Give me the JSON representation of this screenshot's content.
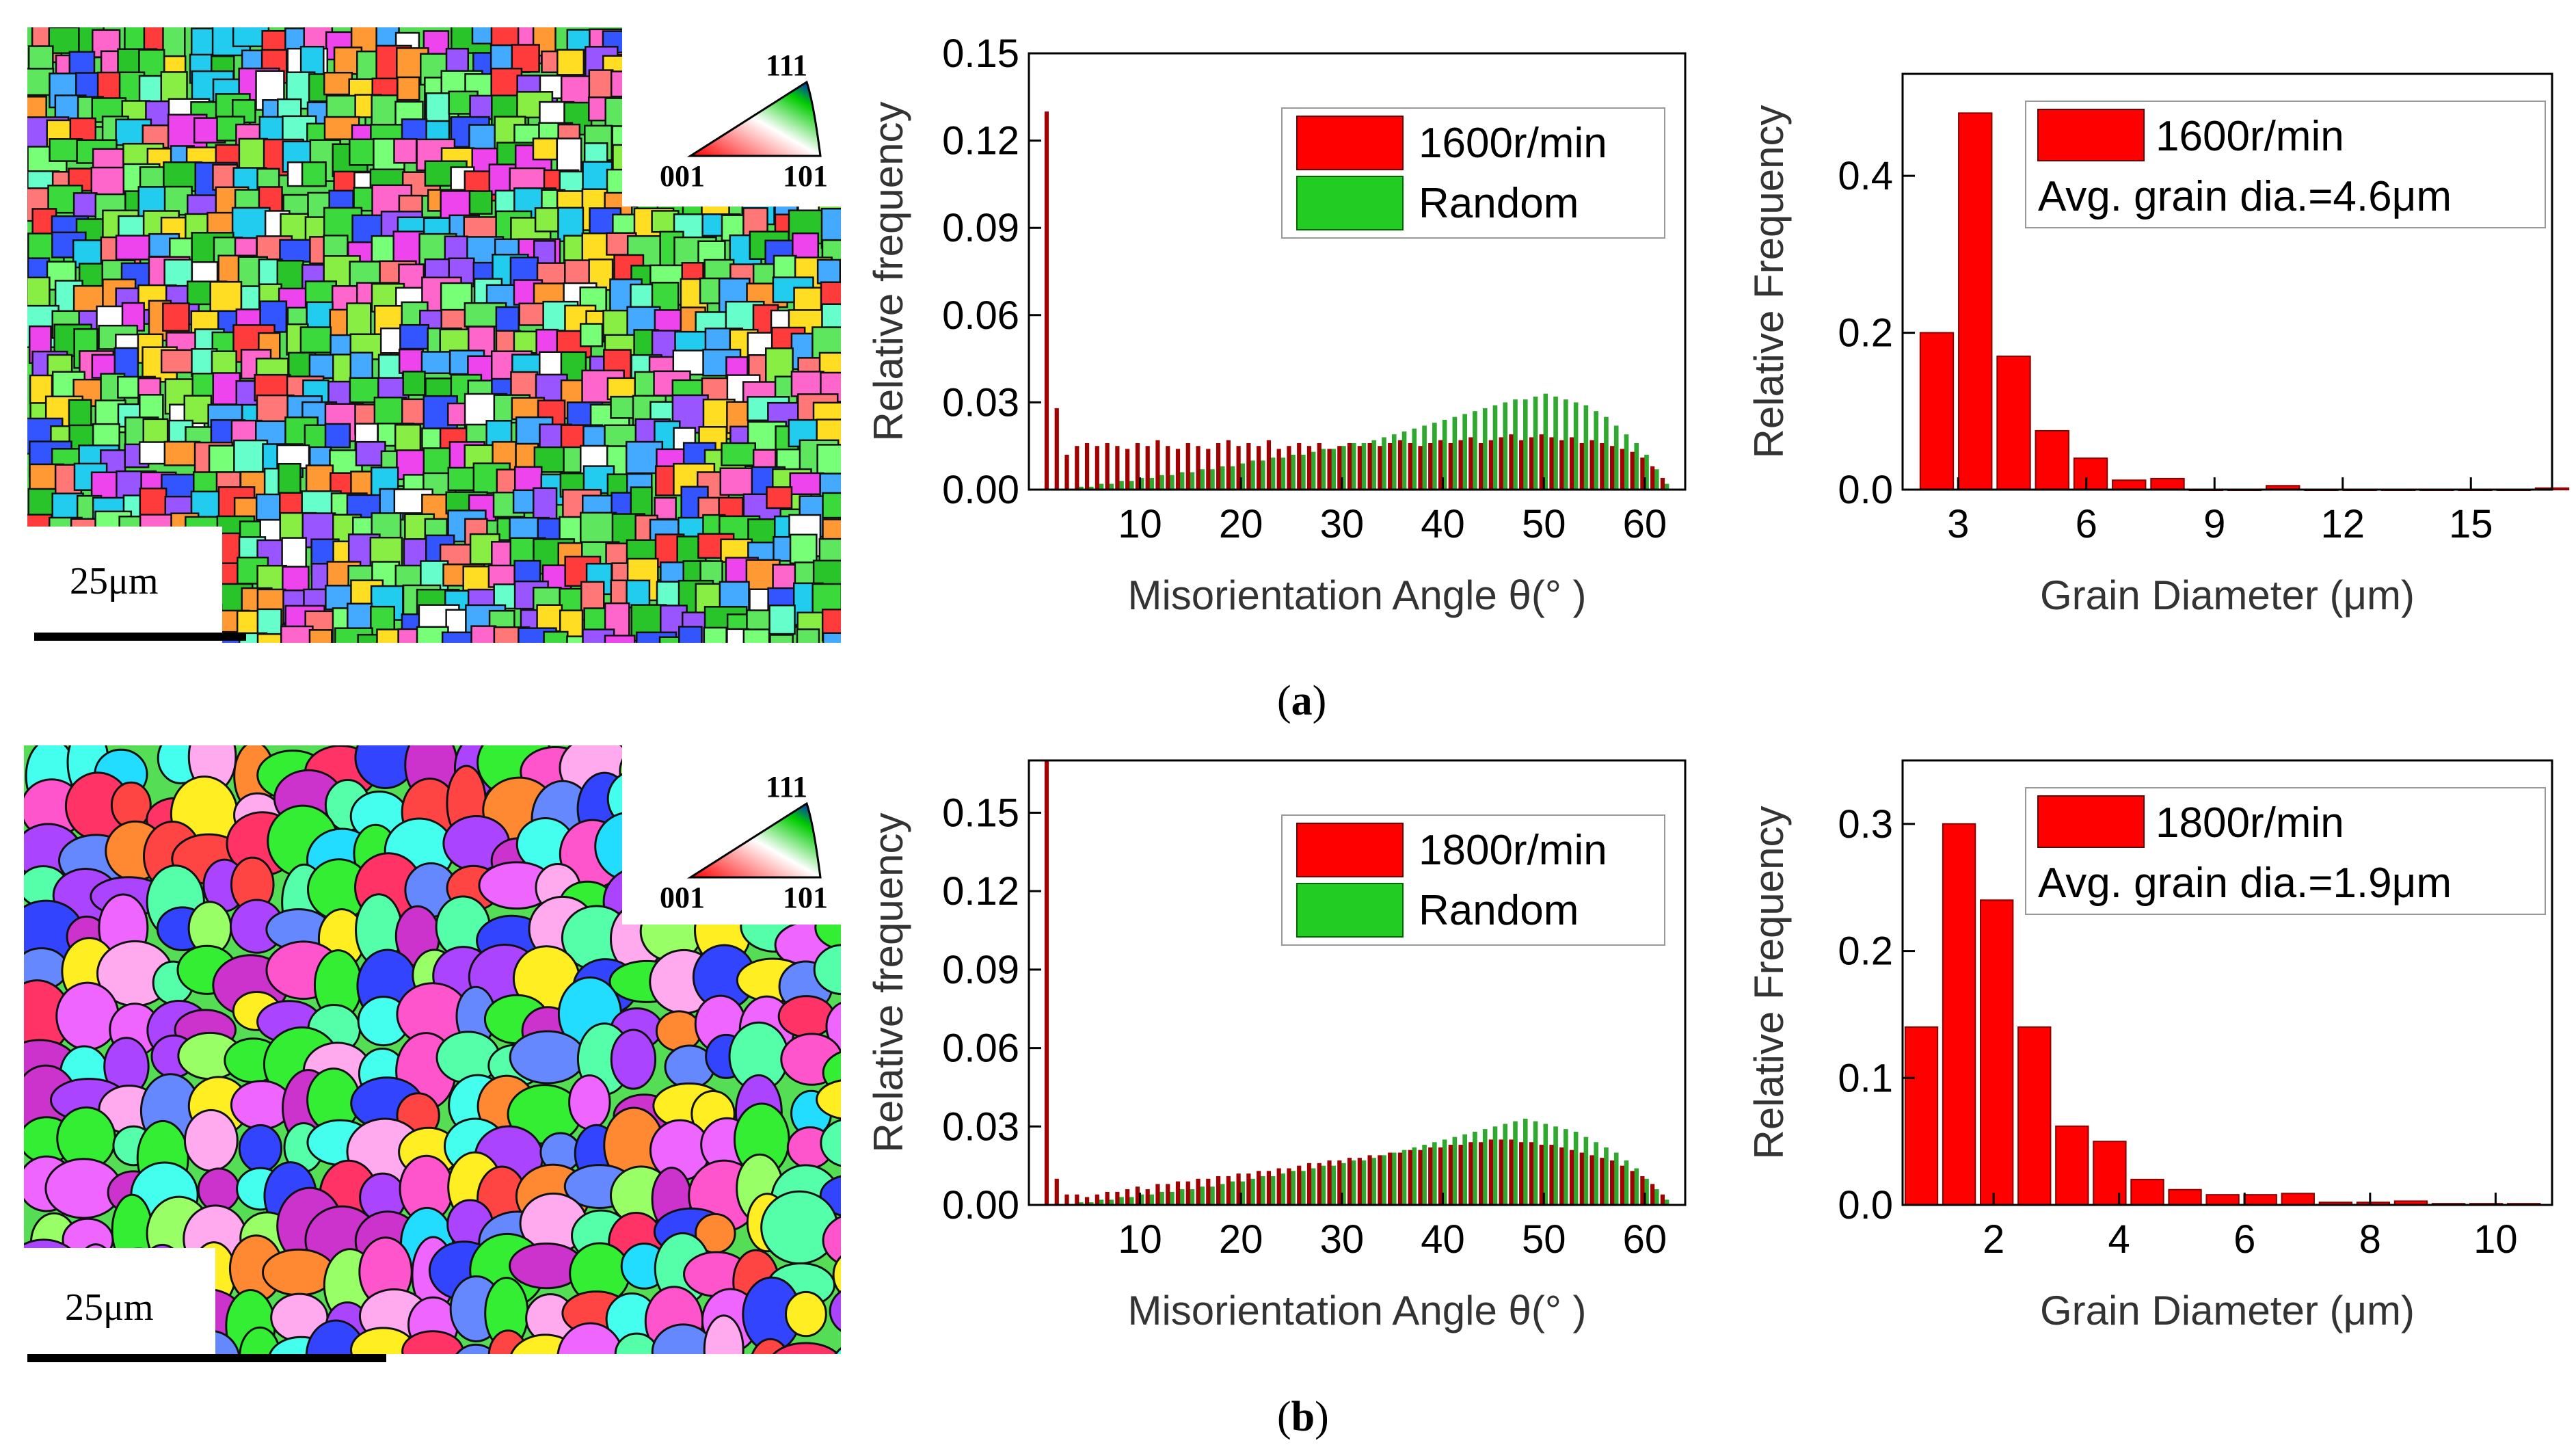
{
  "figure": {
    "caption_a": "a",
    "caption_b": "b"
  },
  "panels": [
    {
      "id": "a",
      "ebsd": {
        "scale_bar_label": "25μm",
        "ipf_key": {
          "corner_111": "111",
          "corner_001": "001",
          "corner_101": "101"
        }
      }
    },
    {
      "id": "b",
      "ebsd": {
        "scale_bar_label": "25μm",
        "ipf_key": {
          "corner_111": "111",
          "corner_001": "001",
          "corner_101": "101"
        }
      }
    }
  ],
  "colors": {
    "measured_fill": "#ff0000",
    "measured_bar_dark": "#a00000",
    "random_fill": "#22cc22",
    "random_bar": "#2fa82f"
  },
  "chart_data": [
    {
      "panel": "a",
      "type": "bar",
      "title": "",
      "xlabel": "Misorientation Angle θ(° )",
      "ylabel": "Relative frequency",
      "xlim": [
        -1,
        64
      ],
      "ylim": [
        0,
        0.15
      ],
      "xticks": [
        10,
        20,
        30,
        40,
        50,
        60
      ],
      "yticks": [
        "0.00",
        "0.03",
        "0.06",
        "0.09",
        "0.12",
        "0.15"
      ],
      "legend_position": "top-right",
      "series": [
        {
          "name": "1600r/min",
          "values": [
            0.13,
            0.028,
            0.012,
            0.015,
            0.016,
            0.015,
            0.016,
            0.015,
            0.014,
            0.016,
            0.015,
            0.017,
            0.015,
            0.014,
            0.016,
            0.015,
            0.014,
            0.016,
            0.017,
            0.015,
            0.016,
            0.015,
            0.017,
            0.014,
            0.015,
            0.016,
            0.015,
            0.016,
            0.014,
            0.015,
            0.016,
            0.015,
            0.016,
            0.015,
            0.016,
            0.017,
            0.016,
            0.015,
            0.016,
            0.017,
            0.016,
            0.017,
            0.018,
            0.016,
            0.017,
            0.018,
            0.019,
            0.017,
            0.018,
            0.019,
            0.018,
            0.017,
            0.018,
            0.016,
            0.017,
            0.016,
            0.015,
            0.014,
            0.013,
            0.011,
            0.008,
            0.004
          ]
        },
        {
          "name": "Random",
          "values": [
            0.0,
            0.0,
            0.0,
            0.001,
            0.001,
            0.002,
            0.002,
            0.003,
            0.003,
            0.004,
            0.004,
            0.005,
            0.005,
            0.006,
            0.006,
            0.007,
            0.007,
            0.008,
            0.008,
            0.009,
            0.01,
            0.01,
            0.011,
            0.011,
            0.012,
            0.012,
            0.013,
            0.014,
            0.014,
            0.015,
            0.016,
            0.016,
            0.017,
            0.018,
            0.019,
            0.02,
            0.021,
            0.022,
            0.023,
            0.024,
            0.025,
            0.026,
            0.027,
            0.028,
            0.029,
            0.03,
            0.031,
            0.031,
            0.032,
            0.033,
            0.032,
            0.031,
            0.03,
            0.029,
            0.027,
            0.025,
            0.022,
            0.019,
            0.016,
            0.012,
            0.007,
            0.002
          ]
        }
      ]
    },
    {
      "panel": "a",
      "type": "bar",
      "title": "",
      "xlabel": "Grain Diameter (μm)",
      "ylabel": "Relative Frequency",
      "xlim": [
        1.7,
        16.9
      ],
      "ylim": [
        0,
        0.53
      ],
      "xticks": [
        3,
        6,
        9,
        12,
        15
      ],
      "yticks": [
        "0.0",
        "0.2",
        "0.4"
      ],
      "legend_position": "top",
      "legend_label": "1600r/min",
      "annotation": "Avg. grain dia.=4.6μm",
      "bin_width": 0.9,
      "x": [
        2.5,
        3.4,
        4.3,
        5.2,
        6.1,
        7.0,
        7.9,
        8.8,
        9.7,
        10.6,
        11.5,
        12.4,
        13.3,
        14.2,
        15.1,
        16.0,
        16.9
      ],
      "values": [
        0.2,
        0.48,
        0.17,
        0.075,
        0.04,
        0.012,
        0.014,
        0.0,
        0.0,
        0.005,
        0.0,
        0.0,
        0.0,
        0.0,
        0.0,
        0.0,
        0.002
      ]
    },
    {
      "panel": "b",
      "type": "bar",
      "title": "",
      "xlabel": "Misorientation Angle θ(° )",
      "ylabel": "Relative frequency",
      "xlim": [
        -1,
        64
      ],
      "ylim": [
        0,
        0.17
      ],
      "xticks": [
        10,
        20,
        30,
        40,
        50,
        60
      ],
      "yticks": [
        "0.00",
        "0.03",
        "0.06",
        "0.09",
        "0.12",
        "0.15"
      ],
      "legend_position": "top-right",
      "series": [
        {
          "name": "1800r/min",
          "values": [
            0.17,
            0.01,
            0.004,
            0.004,
            0.003,
            0.004,
            0.005,
            0.005,
            0.006,
            0.007,
            0.006,
            0.008,
            0.008,
            0.009,
            0.009,
            0.01,
            0.01,
            0.011,
            0.011,
            0.012,
            0.012,
            0.013,
            0.013,
            0.014,
            0.014,
            0.015,
            0.016,
            0.016,
            0.017,
            0.017,
            0.018,
            0.018,
            0.019,
            0.019,
            0.02,
            0.02,
            0.021,
            0.021,
            0.022,
            0.022,
            0.023,
            0.023,
            0.024,
            0.024,
            0.025,
            0.025,
            0.025,
            0.024,
            0.024,
            0.023,
            0.023,
            0.022,
            0.021,
            0.02,
            0.019,
            0.018,
            0.017,
            0.015,
            0.013,
            0.011,
            0.008,
            0.004
          ]
        },
        {
          "name": "Random",
          "values": [
            0.0,
            0.0,
            0.0,
            0.001,
            0.001,
            0.002,
            0.002,
            0.003,
            0.003,
            0.004,
            0.004,
            0.005,
            0.005,
            0.006,
            0.006,
            0.007,
            0.007,
            0.008,
            0.009,
            0.009,
            0.01,
            0.011,
            0.011,
            0.012,
            0.013,
            0.013,
            0.014,
            0.015,
            0.015,
            0.016,
            0.017,
            0.017,
            0.018,
            0.019,
            0.02,
            0.021,
            0.022,
            0.023,
            0.024,
            0.025,
            0.026,
            0.027,
            0.028,
            0.029,
            0.03,
            0.031,
            0.032,
            0.033,
            0.032,
            0.031,
            0.03,
            0.029,
            0.028,
            0.026,
            0.024,
            0.022,
            0.02,
            0.017,
            0.014,
            0.01,
            0.006,
            0.002
          ]
        }
      ]
    },
    {
      "panel": "b",
      "type": "bar",
      "title": "",
      "xlabel": "Grain Diameter (μm)",
      "ylabel": "Relative Frequency",
      "xlim": [
        0.55,
        10.9
      ],
      "ylim": [
        0,
        0.35
      ],
      "xticks": [
        2,
        4,
        6,
        8,
        10
      ],
      "yticks": [
        "0.0",
        "0.1",
        "0.2",
        "0.3"
      ],
      "legend_position": "top",
      "legend_label": "1800r/min",
      "annotation": "Avg. grain dia.=1.9μm",
      "bin_width": 0.6,
      "x": [
        0.85,
        1.45,
        2.05,
        2.65,
        3.25,
        3.85,
        4.45,
        5.05,
        5.65,
        6.25,
        6.85,
        7.45,
        8.05,
        8.65,
        9.25,
        9.85,
        10.45
      ],
      "values": [
        0.14,
        0.3,
        0.24,
        0.14,
        0.062,
        0.05,
        0.02,
        0.012,
        0.008,
        0.008,
        0.009,
        0.002,
        0.002,
        0.003,
        0.001,
        0.001,
        0.001
      ]
    }
  ]
}
